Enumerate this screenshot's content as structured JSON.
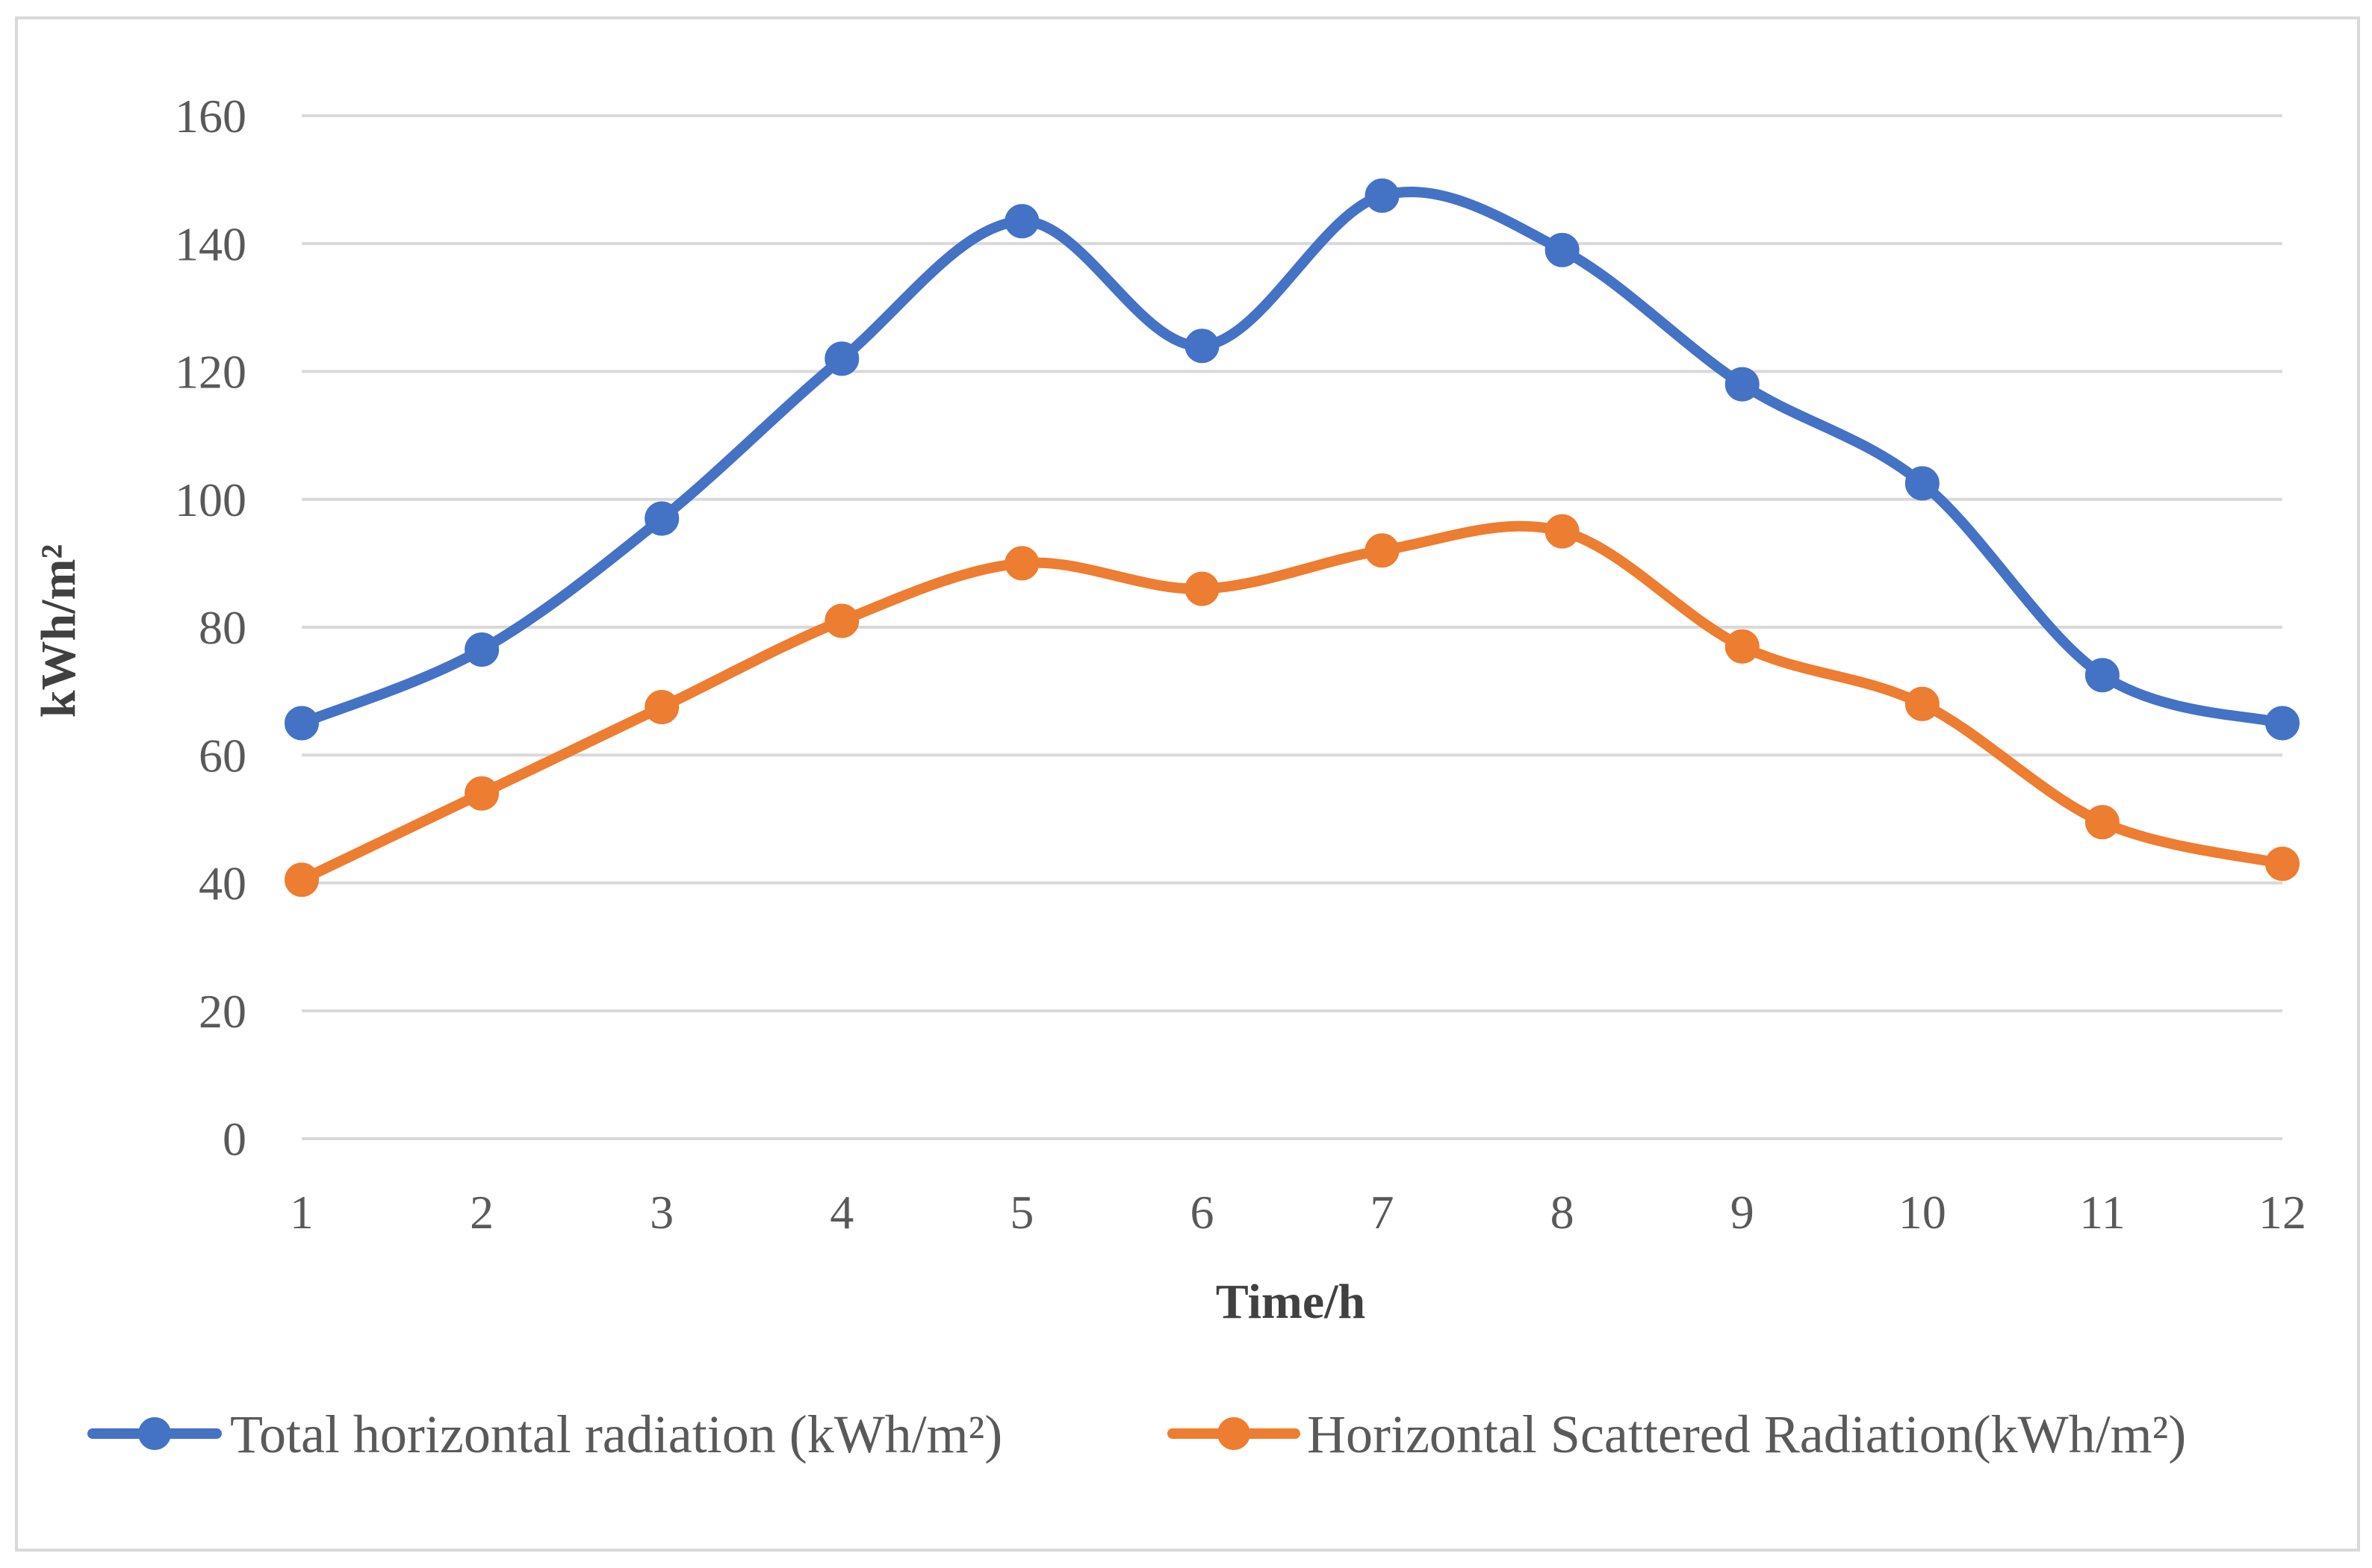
{
  "chart_data": {
    "type": "line",
    "title": "",
    "xlabel": "Time/h",
    "ylabel": "kWh/m²",
    "categories": [
      "1",
      "2",
      "3",
      "4",
      "5",
      "6",
      "7",
      "8",
      "9",
      "10",
      "11",
      "12"
    ],
    "ylim": [
      0,
      160
    ],
    "yticks": [
      "0",
      "20",
      "40",
      "60",
      "80",
      "100",
      "120",
      "140",
      "160"
    ],
    "grid": true,
    "legend_position": "bottom",
    "smooth": true,
    "series": [
      {
        "name": "Total horizontal radiation (kWh/m²)",
        "color": "#4472C4",
        "values": [
          65,
          76.5,
          97,
          122,
          143.5,
          124,
          147.5,
          139,
          118,
          102.5,
          72.5,
          65
        ]
      },
      {
        "name": "Horizontal Scattered Radiation(kWh/m²)",
        "color": "#ED7D31",
        "values": [
          40.5,
          54,
          67.5,
          81,
          90,
          86,
          92,
          95,
          77,
          68,
          49.5,
          43
        ]
      }
    ]
  }
}
